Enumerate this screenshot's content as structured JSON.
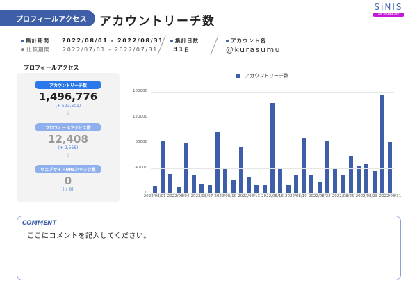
{
  "header": {
    "section_badge": "プロフィールアクセス",
    "title": "アカウントリーチ数",
    "logo": {
      "text": "SiNIS",
      "subtext": "for Instagram",
      "color": "#4a67b0",
      "sub_color": "#c21ad4"
    }
  },
  "info": {
    "period_label": "集計期間",
    "period_value": "2022/08/01 - 2022/08/31",
    "compare_label": "比較期間",
    "compare_value": "2022/07/01 - 2022/07/31",
    "days_label": "集計日数",
    "days_value": "31",
    "days_unit": "日",
    "account_label": "アカウント名",
    "account_value": "@kurasumu"
  },
  "summary_card": {
    "title": "プロフィールアクセス",
    "metrics": [
      {
        "label": "アカウントリーチ数",
        "value": "1,496,776",
        "diff": "(+ 523,601)"
      },
      {
        "label": "プロフィールアクセス数",
        "value": "12,408",
        "diff": "(+ 2,566)"
      },
      {
        "label": "ウェブサイトURLクリック数",
        "value": "0",
        "diff": "(+ 0)"
      }
    ],
    "arrow": "↓"
  },
  "chart_data": {
    "type": "bar",
    "title": "",
    "legend": [
      "アカウントリーチ数"
    ],
    "legend_position": "top",
    "xlabel": "",
    "ylabel": "",
    "ylim": [
      0,
      160000
    ],
    "yticks": [
      "0",
      "40000",
      "80000",
      "120000",
      "160000"
    ],
    "grid": true,
    "color": "#3e5fa7",
    "x_tick_labels": [
      "2022/08/01",
      "2022/08/04",
      "2022/08/07",
      "2022/08/10",
      "2022/08/13",
      "2022/08/16",
      "2022/08/19",
      "2022/08/22",
      "2022/08/25",
      "2022/08/28",
      "2022/08/31"
    ],
    "categories": [
      "2022/08/01",
      "2022/08/02",
      "2022/08/03",
      "2022/08/04",
      "2022/08/05",
      "2022/08/06",
      "2022/08/07",
      "2022/08/08",
      "2022/08/09",
      "2022/08/10",
      "2022/08/11",
      "2022/08/12",
      "2022/08/13",
      "2022/08/14",
      "2022/08/15",
      "2022/08/16",
      "2022/08/17",
      "2022/08/18",
      "2022/08/19",
      "2022/08/20",
      "2022/08/21",
      "2022/08/22",
      "2022/08/23",
      "2022/08/24",
      "2022/08/25",
      "2022/08/26",
      "2022/08/27",
      "2022/08/28",
      "2022/08/29",
      "2022/08/30",
      "2022/08/31"
    ],
    "series": [
      {
        "name": "アカウントリーチ数",
        "values": [
          11700,
          81800,
          30500,
          9500,
          79600,
          28300,
          14900,
          12700,
          96700,
          40700,
          20500,
          73400,
          25100,
          12700,
          13400,
          142000,
          40700,
          12700,
          28000,
          86700,
          29100,
          18900,
          82800,
          40700,
          29800,
          59200,
          43300,
          46900,
          35200,
          154500,
          81000
        ]
      }
    ]
  },
  "comment": {
    "label": "COMMENT",
    "text": "ここにコメントを記入してください。"
  }
}
